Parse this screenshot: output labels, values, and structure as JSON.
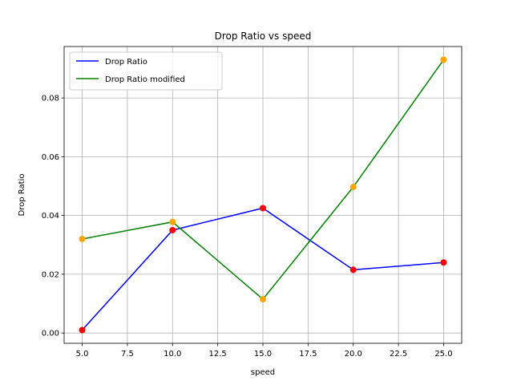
{
  "chart_data": {
    "type": "line",
    "title": "Drop Ratio vs speed",
    "xlabel": "speed",
    "ylabel": "Drop Ratio",
    "xlim": [
      4.0,
      26.0
    ],
    "ylim": [
      -0.0035,
      0.0975
    ],
    "xticks": [
      5.0,
      7.5,
      10.0,
      12.5,
      15.0,
      17.5,
      20.0,
      22.5,
      25.0
    ],
    "xtick_labels": [
      "5.0",
      "7.5",
      "10.0",
      "12.5",
      "15.0",
      "17.5",
      "20.0",
      "22.5",
      "25.0"
    ],
    "yticks": [
      0.0,
      0.02,
      0.04,
      0.06,
      0.08
    ],
    "ytick_labels": [
      "0.00",
      "0.02",
      "0.04",
      "0.06",
      "0.08"
    ],
    "grid": true,
    "legend_position": "top-left",
    "series": [
      {
        "name": "Drop Ratio",
        "color": "#0000ff",
        "marker_color": "#ff0000",
        "x": [
          5,
          10,
          15,
          20,
          25
        ],
        "values": [
          0.001,
          0.035,
          0.0425,
          0.0215,
          0.024
        ]
      },
      {
        "name": "Drop Ratio modified",
        "color": "#008000",
        "marker_color": "#ffa500",
        "x": [
          5,
          10,
          15,
          20,
          25
        ],
        "values": [
          0.032,
          0.0378,
          0.0115,
          0.0497,
          0.093
        ]
      }
    ]
  }
}
